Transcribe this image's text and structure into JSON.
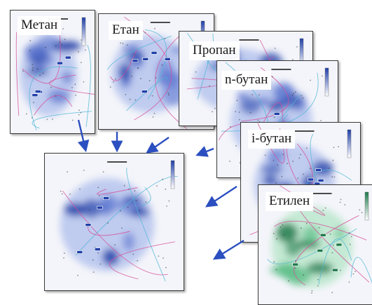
{
  "maps": [
    {
      "id": "metan",
      "label": "Метан",
      "palette": "blue"
    },
    {
      "id": "etan",
      "label": "Етан",
      "palette": "blue"
    },
    {
      "id": "propan",
      "label": "Пропан",
      "palette": "blue"
    },
    {
      "id": "n-butan",
      "label": "n-бутан",
      "palette": "blue"
    },
    {
      "id": "i-butan",
      "label": "i-бутан",
      "palette": "blue"
    },
    {
      "id": "etylen",
      "label": "Етилен",
      "palette": "green"
    },
    {
      "id": "combined",
      "label": "",
      "palette": "blue"
    }
  ],
  "colors": {
    "blue_dark": "#1f3fa8",
    "blue_mid": "#5f78d0",
    "blue_light": "#b9c6ee",
    "green_dark": "#1f7a4c",
    "green_mid": "#5fbf8a",
    "green_light": "#bfe8cf",
    "arrow": "#2b4fc0",
    "road_pink": "#d64f9a",
    "road_cyan": "#4fb7d6"
  }
}
